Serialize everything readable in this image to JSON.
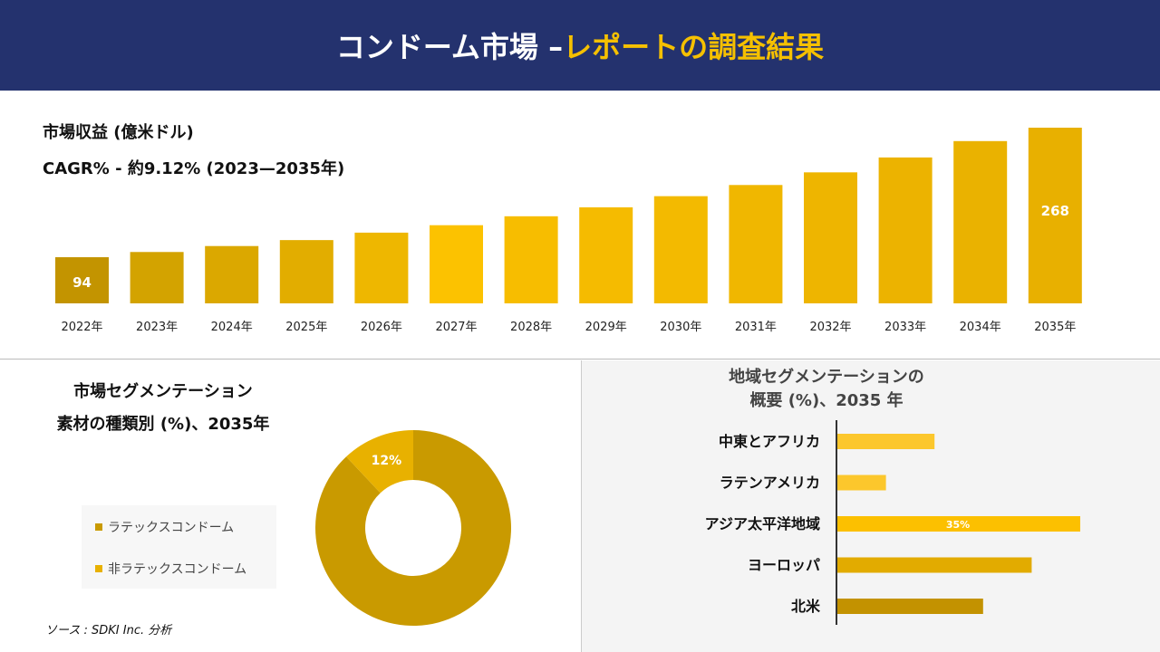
{
  "header": {
    "title_white": "コンドーム市場 –",
    "title_yellow": "レポートの調査結果"
  },
  "chart_data": [
    {
      "type": "bar",
      "title": "市場収益 (億米ドル)",
      "subtitle": "CAGR% - 約9.12% (2023—2035年)",
      "categories": [
        "2022年",
        "2023年",
        "2024年",
        "2025年",
        "2026年",
        "2027年",
        "2028年",
        "2029年",
        "2030年",
        "2031年",
        "2032年",
        "2033年",
        "2034年",
        "2035年"
      ],
      "values": [
        94,
        101,
        109,
        117,
        127,
        137,
        149,
        161,
        176,
        191,
        208,
        228,
        250,
        268
      ],
      "data_labels": {
        "0": "94",
        "13": "268"
      },
      "colors": [
        "#c39400",
        "#d3a300",
        "#dba800",
        "#e2ad00",
        "#eeb700",
        "#fcc200",
        "#f7bd00",
        "#f5bb00",
        "#f3ba00",
        "#f0b700",
        "#eeb500",
        "#ecb300",
        "#eab200",
        "#e8b000"
      ]
    },
    {
      "type": "pie",
      "title": "市場セグメンテーション",
      "subtitle": "素材の種類別 (%)、2035年",
      "labels": [
        "ラテックスコンドーム",
        "非ラテックスコンドーム"
      ],
      "values": [
        88,
        12
      ],
      "data_labels": [
        "",
        "12%"
      ],
      "colors": [
        "#c99a00",
        "#e8b100"
      ]
    },
    {
      "type": "bar",
      "orientation": "horizontal",
      "title": "地域セグメンテーションの",
      "subtitle": "概要 (%)、2035 年",
      "categories": [
        "中東とアフリカ",
        "ラテンアメリカ",
        "アジア太平洋地域",
        "ヨーロッパ",
        "北米"
      ],
      "values": [
        14,
        7,
        35,
        28,
        21
      ],
      "data_labels": [
        "",
        "",
        "35%",
        "",
        ""
      ],
      "colors": [
        "#fcc72c",
        "#fcc72c",
        "#fcc000",
        "#e2ab00",
        "#c39200"
      ]
    }
  ],
  "source": "ソース : SDKI Inc. 分析"
}
